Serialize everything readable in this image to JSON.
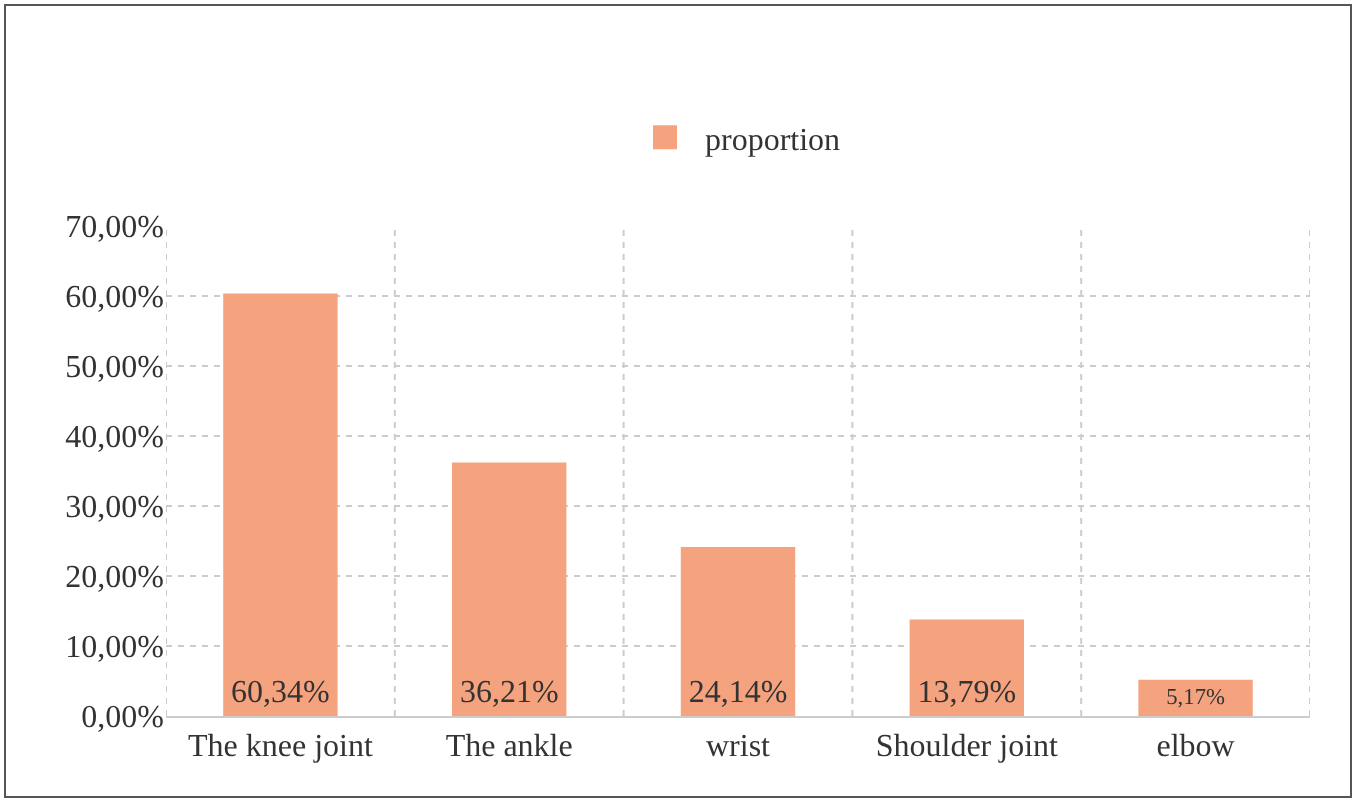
{
  "chart_data": {
    "type": "bar",
    "categories": [
      "The knee joint",
      "The ankle",
      "wrist",
      "Shoulder joint",
      "elbow"
    ],
    "series": [
      {
        "name": "proportion",
        "color": "#f5a27f",
        "values": [
          60.34,
          36.21,
          24.14,
          13.79,
          5.17
        ],
        "value_labels": [
          "60,34%",
          "36,21%",
          "24,14%",
          "13,79%",
          "5,17%"
        ]
      }
    ],
    "ylim": [
      0,
      70
    ],
    "yticks": [
      {
        "value": 0,
        "label": "0,00%"
      },
      {
        "value": 10,
        "label": "10,00%"
      },
      {
        "value": 20,
        "label": "20,00%"
      },
      {
        "value": 30,
        "label": "30,00%"
      },
      {
        "value": 40,
        "label": "40,00%"
      },
      {
        "value": 50,
        "label": "50,00%"
      },
      {
        "value": 60,
        "label": "60,00%"
      },
      {
        "value": 70,
        "label": "70,00%"
      }
    ],
    "grid": true,
    "legend": "top"
  }
}
